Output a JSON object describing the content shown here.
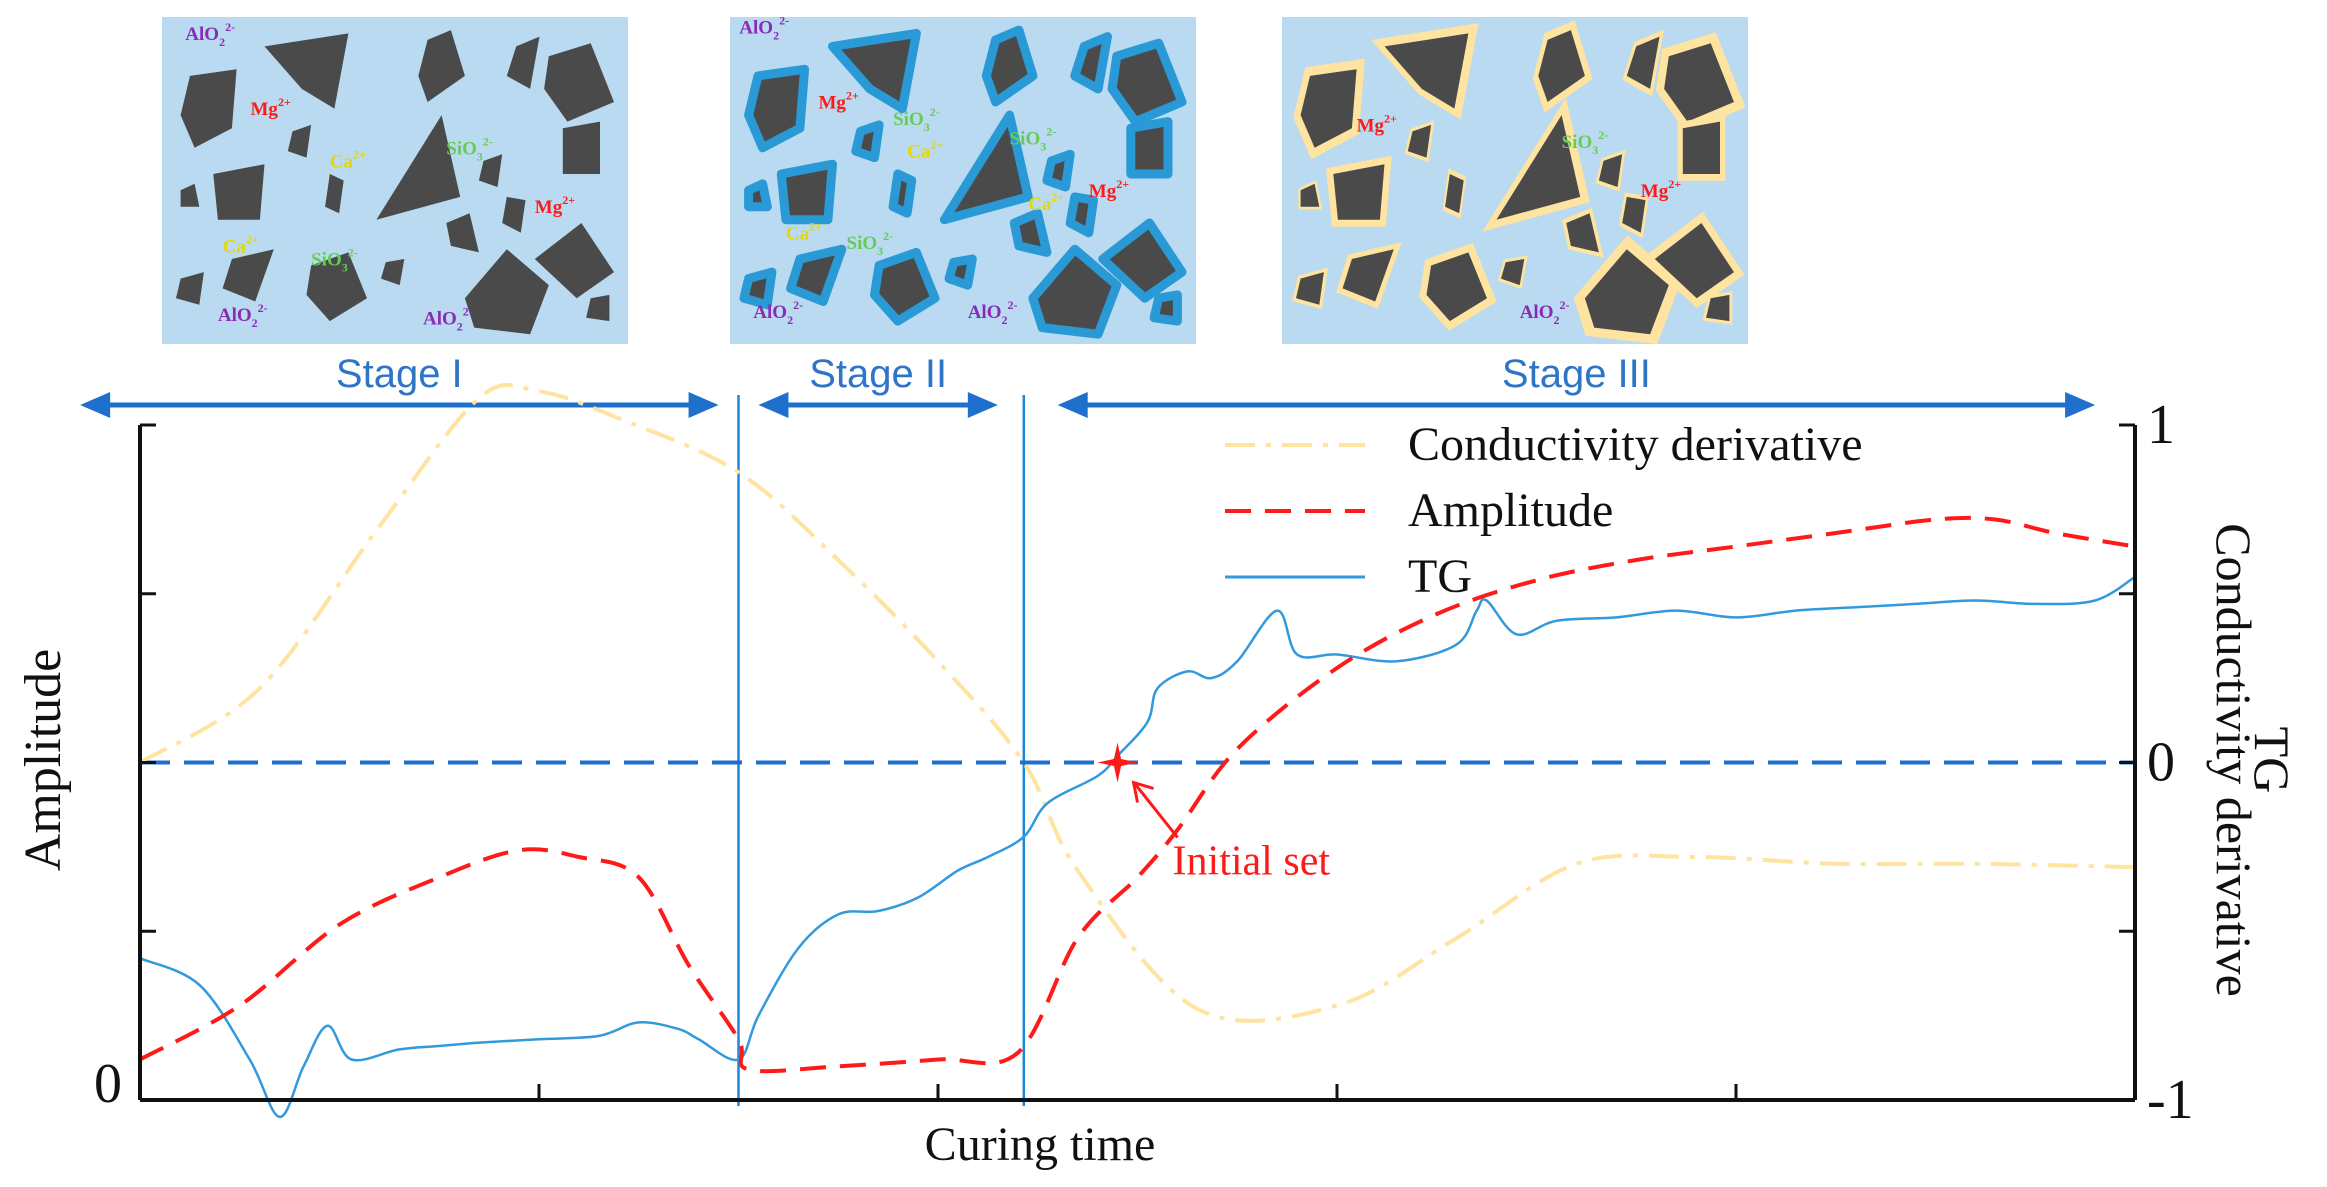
{
  "chart_data": {
    "type": "line",
    "xlabel": "Curing time",
    "ylabel_left": "Amplitude",
    "ylabel_right_line1": "TG",
    "ylabel_right_line2": "Conductivity derivative",
    "x_range": [
      0,
      1
    ],
    "left_axis": {
      "range": [
        0,
        1
      ],
      "ticks": [
        0,
        0.25,
        0.5,
        0.75,
        1
      ],
      "labels": [
        {
          "value": 0,
          "text": "0"
        }
      ]
    },
    "right_axis": {
      "range": [
        -1,
        1
      ],
      "ticks": [
        -1,
        -0.5,
        0,
        0.5,
        1
      ],
      "labels": [
        {
          "value": 1,
          "text": "1"
        },
        {
          "value": 0,
          "text": "0"
        },
        {
          "value": -1,
          "text": "-1"
        }
      ]
    },
    "x_ticks": [
      0,
      0.2,
      0.4,
      0.6,
      0.8,
      1
    ],
    "stage_boundaries": [
      0.3,
      0.443
    ],
    "zero_line": 0,
    "series": [
      {
        "name": "Conductivity derivative",
        "axis": "right",
        "style": "dashdot",
        "color": "#FFE3A0",
        "x": [
          0,
          0.06,
          0.12,
          0.17,
          0.2,
          0.24,
          0.3,
          0.35,
          0.4,
          0.443,
          0.47,
          0.53,
          0.6,
          0.66,
          0.72,
          0.78,
          0.85,
          0.92,
          1
        ],
        "y": [
          0,
          0.22,
          0.7,
          1.08,
          1.1,
          1.02,
          0.86,
          0.6,
          0.3,
          0,
          -0.32,
          -0.73,
          -0.72,
          -0.52,
          -0.3,
          -0.28,
          -0.3,
          -0.3,
          -0.31
        ]
      },
      {
        "name": "Amplitude",
        "axis": "left",
        "style": "dashed",
        "color": "#FF1A1A",
        "x": [
          0,
          0.05,
          0.1,
          0.15,
          0.19,
          0.22,
          0.25,
          0.275,
          0.3,
          0.305,
          0.35,
          0.4,
          0.44,
          0.47,
          0.5,
          0.52,
          0.55,
          0.6,
          0.65,
          0.7,
          0.75,
          0.8,
          0.85,
          0.9,
          0.93,
          0.96,
          1
        ],
        "y": [
          0.06,
          0.14,
          0.26,
          0.33,
          0.37,
          0.36,
          0.33,
          0.2,
          0.09,
          0.045,
          0.05,
          0.06,
          0.07,
          0.24,
          0.33,
          0.4,
          0.52,
          0.64,
          0.72,
          0.77,
          0.8,
          0.82,
          0.84,
          0.86,
          0.86,
          0.84,
          0.82
        ]
      },
      {
        "name": "TG",
        "axis": "right",
        "style": "solid",
        "color": "#3399DD",
        "x": [
          0,
          0.03,
          0.055,
          0.07,
          0.082,
          0.094,
          0.106,
          0.13,
          0.15,
          0.17,
          0.2,
          0.23,
          0.25,
          0.27,
          0.28,
          0.3,
          0.31,
          0.33,
          0.35,
          0.37,
          0.39,
          0.41,
          0.425,
          0.443,
          0.455,
          0.48,
          0.49,
          0.505,
          0.51,
          0.525,
          0.537,
          0.55,
          0.57,
          0.58,
          0.6,
          0.63,
          0.66,
          0.67,
          0.675,
          0.69,
          0.71,
          0.74,
          0.77,
          0.8,
          0.83,
          0.86,
          0.89,
          0.92,
          0.95,
          0.98,
          1
        ],
        "y": [
          -0.58,
          -0.66,
          -0.88,
          -1.05,
          -0.9,
          -0.78,
          -0.88,
          -0.85,
          -0.84,
          -0.83,
          -0.82,
          -0.81,
          -0.77,
          -0.79,
          -0.82,
          -0.88,
          -0.75,
          -0.55,
          -0.45,
          -0.44,
          -0.4,
          -0.32,
          -0.28,
          -0.22,
          -0.12,
          -0.04,
          0.02,
          0.12,
          0.22,
          0.27,
          0.25,
          0.3,
          0.45,
          0.32,
          0.32,
          0.3,
          0.35,
          0.45,
          0.48,
          0.38,
          0.42,
          0.43,
          0.45,
          0.43,
          0.45,
          0.46,
          0.47,
          0.48,
          0.47,
          0.48,
          0.55
        ]
      }
    ],
    "legend": {
      "position": "top-right",
      "entries": [
        {
          "label": "Conductivity derivative",
          "color": "#FFE3A0",
          "style": "dashdot"
        },
        {
          "label": "Amplitude",
          "color": "#FF1A1A",
          "style": "dashed"
        },
        {
          "label": "TG",
          "color": "#3399DD",
          "style": "solid"
        }
      ]
    },
    "stages": [
      {
        "label": "Stage I",
        "from": -0.03,
        "to": 0.29
      },
      {
        "label": "Stage II",
        "from": 0.31,
        "to": 0.43
      },
      {
        "label": "Stage III",
        "from": 0.46,
        "to": 0.98
      }
    ],
    "annotation": {
      "text": "Initial set",
      "x": 0.49,
      "y": 0,
      "color": "#FF1A1A"
    },
    "panels": [
      {
        "stage": "Stage I",
        "coating": "none",
        "ions": [
          {
            "text": "AlO",
            "sub": "2",
            "sup": "2-",
            "color": "#8A2BB8"
          },
          {
            "text": "Mg",
            "sub": "",
            "sup": "2+",
            "color": "#FF1A1A"
          },
          {
            "text": "Ca",
            "sub": "",
            "sup": "2+",
            "color": "#E6D800"
          },
          {
            "text": "SiO",
            "sub": "3",
            "sup": "2-",
            "color": "#66CC55"
          },
          {
            "text": "Mg",
            "sub": "",
            "sup": "2+",
            "color": "#FF1A1A"
          },
          {
            "text": "Ca",
            "sub": "",
            "sup": "2+",
            "color": "#E6D800"
          },
          {
            "text": "SiO",
            "sub": "3",
            "sup": "2-",
            "color": "#66CC55"
          },
          {
            "text": "AlO",
            "sub": "2",
            "sup": "2-",
            "color": "#8A2BB8"
          },
          {
            "text": "AlO",
            "sub": "2",
            "sup": "2-",
            "color": "#8A2BB8"
          }
        ]
      },
      {
        "stage": "Stage II",
        "coating": "blue",
        "ions": [
          {
            "text": "AlO",
            "sub": "2",
            "sup": "2-",
            "color": "#8A2BB8"
          },
          {
            "text": "Mg",
            "sub": "",
            "sup": "2+",
            "color": "#FF1A1A"
          },
          {
            "text": "SiO",
            "sub": "3",
            "sup": "2-",
            "color": "#66CC55"
          },
          {
            "text": "Ca",
            "sub": "",
            "sup": "2+",
            "color": "#E6D800"
          },
          {
            "text": "SiO",
            "sub": "3",
            "sup": "2-",
            "color": "#66CC55"
          },
          {
            "text": "Ca",
            "sub": "",
            "sup": "2+",
            "color": "#E6D800"
          },
          {
            "text": "Mg",
            "sub": "",
            "sup": "2+",
            "color": "#FF1A1A"
          },
          {
            "text": "Ca",
            "sub": "",
            "sup": "2+",
            "color": "#E6D800"
          },
          {
            "text": "SiO",
            "sub": "3",
            "sup": "2-",
            "color": "#66CC55"
          },
          {
            "text": "AlO",
            "sub": "2",
            "sup": "2-",
            "color": "#8A2BB8"
          },
          {
            "text": "AlO",
            "sub": "2",
            "sup": "2-",
            "color": "#8A2BB8"
          }
        ]
      },
      {
        "stage": "Stage III",
        "coating": "gel",
        "ions": [
          {
            "text": "Mg",
            "sub": "",
            "sup": "2+",
            "color": "#FF1A1A"
          },
          {
            "text": "SiO",
            "sub": "3",
            "sup": "2-",
            "color": "#66CC55"
          },
          {
            "text": "Mg",
            "sub": "",
            "sup": "2+",
            "color": "#FF1A1A"
          },
          {
            "text": "AlO",
            "sub": "2",
            "sup": "2-",
            "color": "#8A2BB8"
          }
        ]
      }
    ],
    "colors": {
      "axis": "#111111",
      "stage_text": "#2E75C7",
      "stage_arrow": "#1F6FCC",
      "stage_divider": "#1E88D8",
      "zero_line": "#1E6FCC",
      "panel_background": "#B9DAF0",
      "particle": "#4A4A4A",
      "blue_coating": "#2A9AD6",
      "gel_coating": "#FFE3A0"
    }
  }
}
